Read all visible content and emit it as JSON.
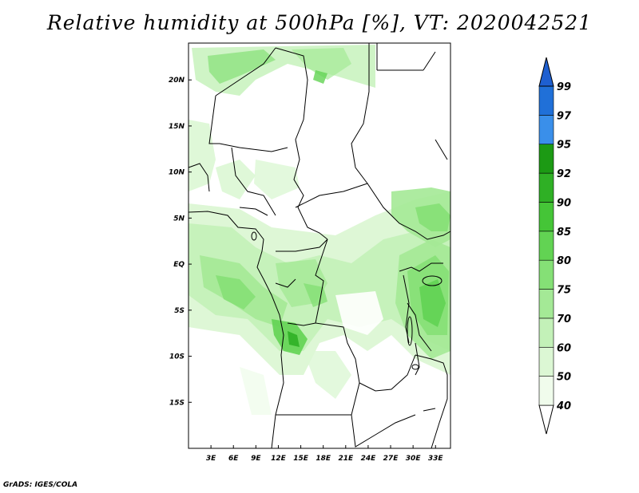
{
  "title": "Relative humidity at 500hPa [%], VT: 2020042521",
  "credit": "GrADS: IGES/COLA",
  "map": {
    "lon_range": [
      0,
      35
    ],
    "lat_range": [
      -20,
      24
    ],
    "x_ticks": [
      "3E",
      "6E",
      "9E",
      "12E",
      "15E",
      "18E",
      "21E",
      "24E",
      "27E",
      "30E",
      "33E"
    ],
    "x_tick_values": [
      3,
      6,
      9,
      12,
      15,
      18,
      21,
      24,
      27,
      30,
      33
    ],
    "y_ticks": [
      "20N",
      "15N",
      "10N",
      "5N",
      "EQ",
      "5S",
      "10S",
      "15S"
    ],
    "y_tick_values": [
      20,
      15,
      10,
      5,
      0,
      -5,
      -10,
      -15
    ]
  },
  "colorbar": {
    "labels": [
      "40",
      "50",
      "60",
      "70",
      "75",
      "80",
      "85",
      "90",
      "92",
      "95",
      "97",
      "99"
    ],
    "colors": [
      "#f0fcec",
      "#dcf7d4",
      "#c3f1b8",
      "#a4e996",
      "#85e076",
      "#62d353",
      "#45c537",
      "#2fb025",
      "#1c9a14",
      "#3a8fea",
      "#2070d8",
      "#1e5fd0"
    ]
  }
}
